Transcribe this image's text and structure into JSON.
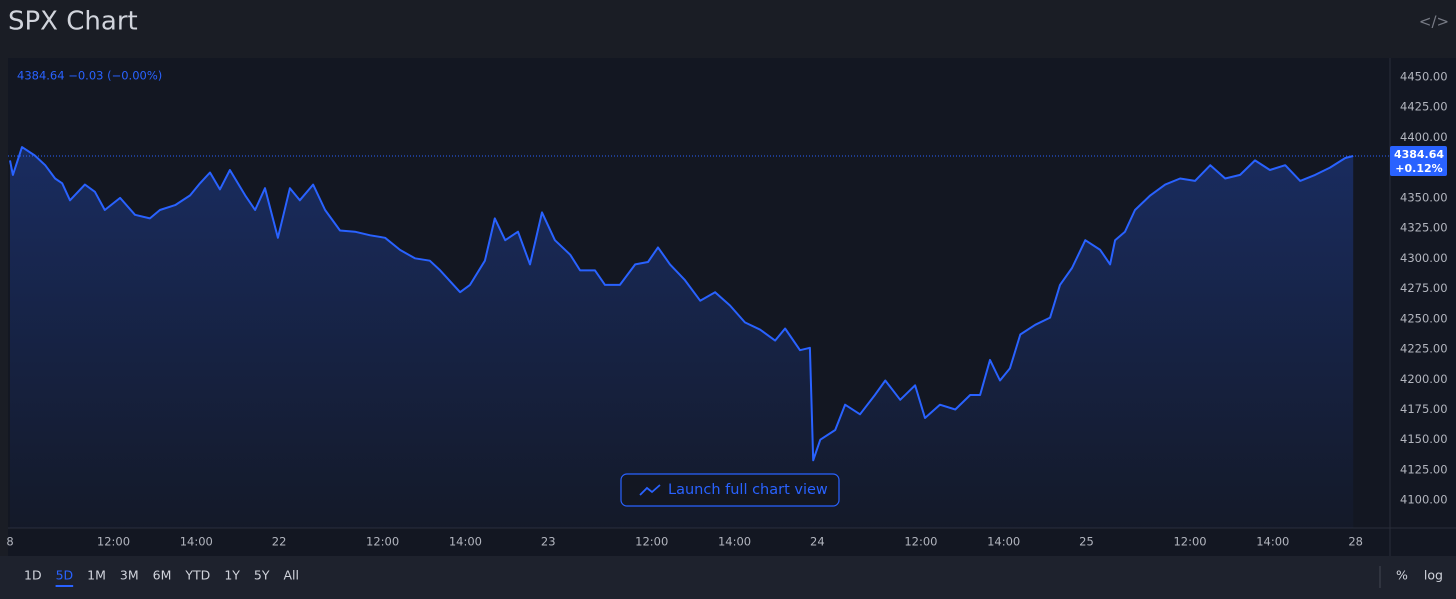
{
  "chart_data": {
    "type": "line",
    "title": "SPX Chart",
    "legend_text": "4384.64 −0.03 (−0.00%)",
    "price_badge": {
      "price": "4384.64",
      "change": "+0.12%"
    },
    "series": [
      {
        "name": "SPX",
        "color": "#2962ff",
        "x": [
          0,
          0.07,
          0.29,
          0.6,
          0.85,
          1.09,
          1.26,
          1.45,
          1.81,
          2.05,
          2.29,
          2.66,
          3.02,
          3.38,
          3.62,
          3.99,
          4.35,
          4.59,
          4.83,
          5.07,
          5.31,
          5.68,
          5.92,
          6.16,
          6.47,
          6.76,
          7.0,
          7.32,
          7.61,
          7.97,
          8.33,
          8.7,
          9.06,
          9.42,
          9.78,
          10.14,
          10.39,
          10.87,
          11.11,
          11.47,
          11.71,
          11.96,
          12.27,
          12.56,
          12.85,
          13.16,
          13.53,
          13.77,
          14.13,
          14.37,
          14.73,
          15.1,
          15.41,
          15.65,
          15.94,
          16.3,
          16.67,
          17.03,
          17.39,
          17.75,
          18.12,
          18.48,
          18.72,
          19.08,
          19.32,
          19.4,
          19.57,
          19.93,
          20.17,
          20.53,
          20.89,
          21.14,
          21.5,
          21.86,
          22.1,
          22.46,
          22.83,
          23.19,
          23.43,
          23.67,
          23.91,
          24.15,
          24.4,
          24.76,
          25.12,
          25.36,
          25.65,
          25.97,
          26.33,
          26.57,
          26.69,
          26.93,
          27.17,
          27.54,
          27.9,
          28.26,
          28.62,
          28.99,
          29.35,
          29.71,
          30.07,
          30.43,
          30.8,
          31.16,
          31.52,
          31.88,
          32.25,
          32.44
        ],
        "values": [
          4381,
          4369,
          4392,
          4385,
          4377,
          4366,
          4362,
          4348,
          4361,
          4355,
          4340,
          4350,
          4336,
          4333,
          4340,
          4344,
          4352,
          4362,
          4371,
          4357,
          4373,
          4352,
          4340,
          4358,
          4317,
          4358,
          4348,
          4361,
          4340,
          4323,
          4322,
          4319,
          4317,
          4307,
          4300,
          4298,
          4290,
          4272,
          4278,
          4298,
          4333,
          4315,
          4322,
          4295,
          4338,
          4315,
          4303,
          4290,
          4290,
          4278,
          4278,
          4295,
          4297,
          4309,
          4295,
          4282,
          4265,
          4272,
          4261,
          4247,
          4241,
          4232,
          4242,
          4224,
          4226,
          4133,
          4150,
          4158,
          4179,
          4171,
          4187,
          4199,
          4183,
          4195,
          4168,
          4179,
          4175,
          4187,
          4187,
          4216,
          4199,
          4209,
          4237,
          4245,
          4251,
          4278,
          4292,
          4315,
          4307,
          4295,
          4315,
          4322,
          4340,
          4352,
          4361,
          4366,
          4364,
          4377,
          4366,
          4369,
          4381,
          4373,
          4377,
          4364,
          4369,
          4375,
          4383,
          4384.64
        ]
      }
    ],
    "xlim": [
      0,
      33.33
    ],
    "xticks": [
      {
        "value": 0,
        "label": "8"
      },
      {
        "value": 2.5,
        "label": "12:00"
      },
      {
        "value": 4.5,
        "label": "14:00"
      },
      {
        "value": 6.5,
        "label": "22"
      },
      {
        "value": 9,
        "label": "12:00"
      },
      {
        "value": 11,
        "label": "14:00"
      },
      {
        "value": 13,
        "label": "23"
      },
      {
        "value": 15.5,
        "label": "12:00"
      },
      {
        "value": 17.5,
        "label": "14:00"
      },
      {
        "value": 19.5,
        "label": "24"
      },
      {
        "value": 22,
        "label": "12:00"
      },
      {
        "value": 24,
        "label": "14:00"
      },
      {
        "value": 26,
        "label": "25"
      },
      {
        "value": 28.5,
        "label": "12:00"
      },
      {
        "value": 30.5,
        "label": "14:00"
      },
      {
        "value": 32.5,
        "label": "28"
      }
    ],
    "ylim": [
      4077,
      4464
    ],
    "yticks": [
      {
        "value": 4100,
        "label": "4100.00"
      },
      {
        "value": 4125,
        "label": "4125.00"
      },
      {
        "value": 4150,
        "label": "4150.00"
      },
      {
        "value": 4175,
        "label": "4175.00"
      },
      {
        "value": 4200,
        "label": "4200.00"
      },
      {
        "value": 4225,
        "label": "4225.00"
      },
      {
        "value": 4250,
        "label": "4250.00"
      },
      {
        "value": 4275,
        "label": "4275.00"
      },
      {
        "value": 4300,
        "label": "4300.00"
      },
      {
        "value": 4325,
        "label": "4325.00"
      },
      {
        "value": 4350,
        "label": "4350.00"
      },
      {
        "value": 4375,
        "label": "4375.00"
      },
      {
        "value": 4400,
        "label": "4400.00"
      },
      {
        "value": 4425,
        "label": "4425.00"
      },
      {
        "value": 4450,
        "label": "4450.00"
      }
    ],
    "grid": false,
    "log_scale": false
  },
  "launch_button": "Launch full chart view",
  "toolbar": {
    "ranges": [
      "1D",
      "5D",
      "1M",
      "3M",
      "6M",
      "YTD",
      "1Y",
      "5Y",
      "All"
    ],
    "selected": 1,
    "scale_buttons": [
      "%",
      "log"
    ]
  }
}
